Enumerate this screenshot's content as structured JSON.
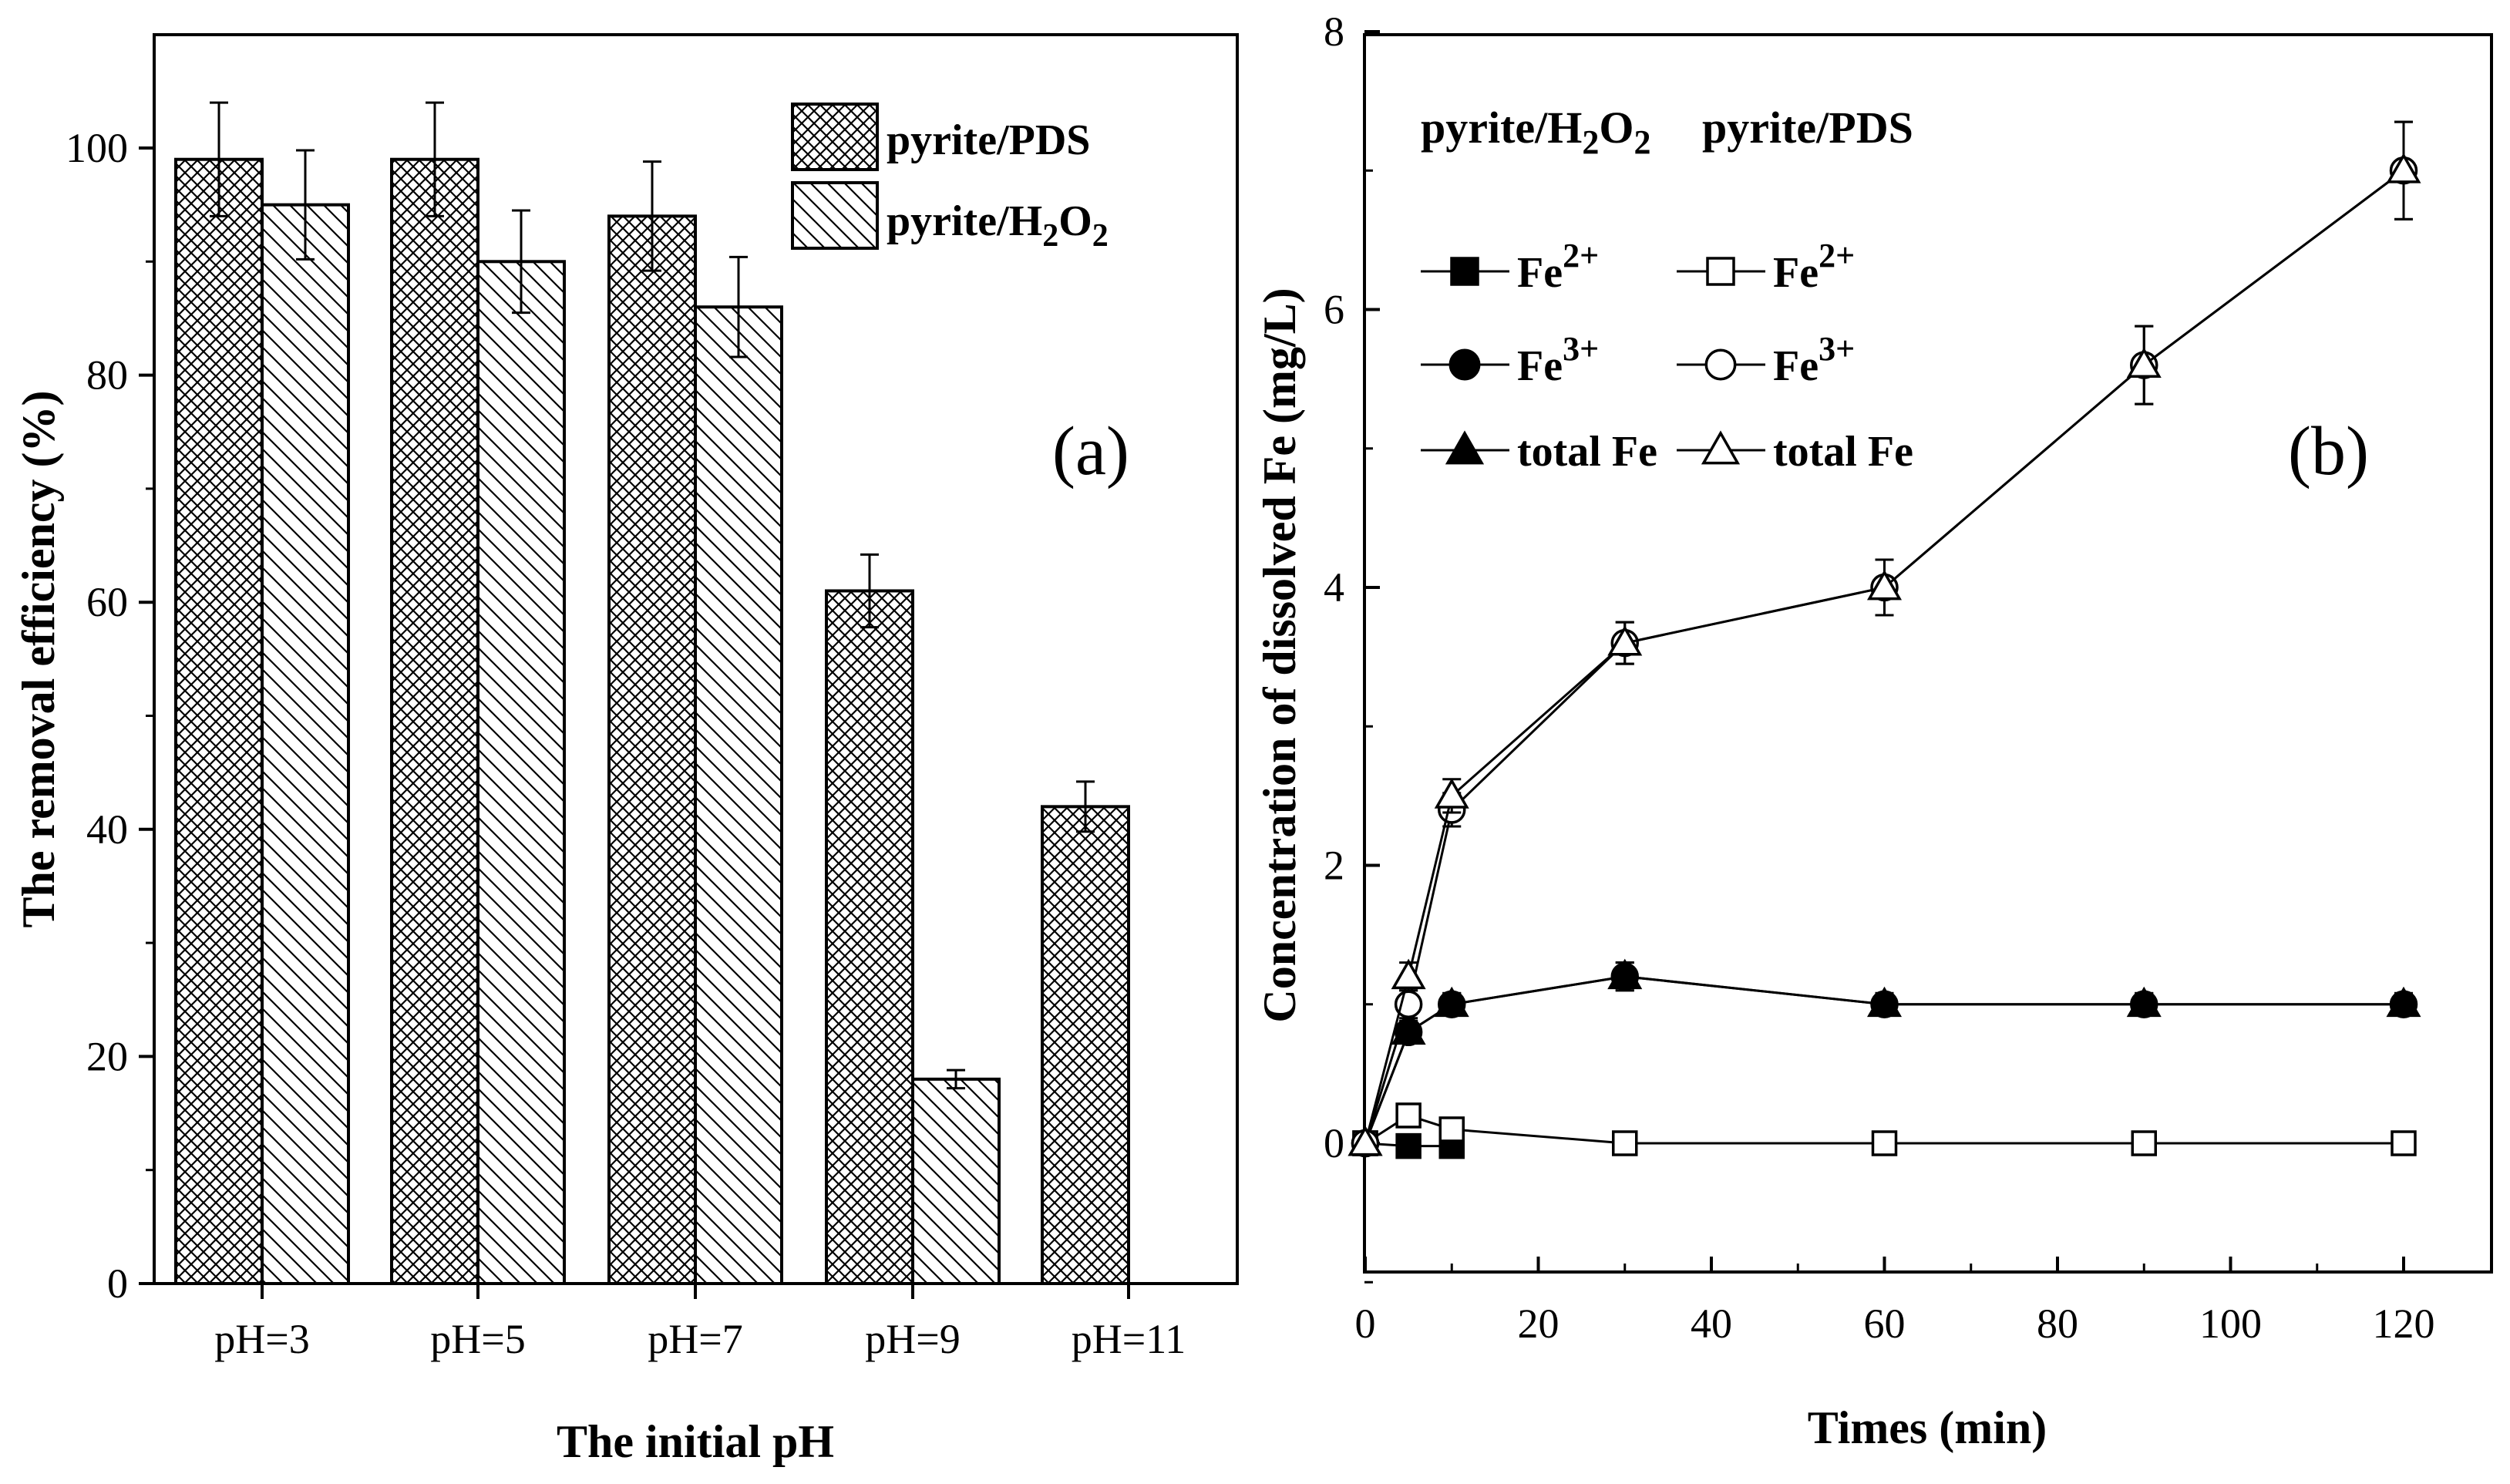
{
  "chart_data": [
    {
      "type": "bar",
      "panel_label": "(a)",
      "categories": [
        "pH=3",
        "pH=5",
        "pH=7",
        "pH=9",
        "pH=11"
      ],
      "series": [
        {
          "name": "pyrite/PDS",
          "sub": "",
          "values": [
            99,
            99,
            94,
            61,
            42
          ],
          "errors": [
            5,
            5,
            4.8,
            3.2,
            2.2
          ],
          "pattern": "crosshatch"
        },
        {
          "name": "pyrite/H",
          "sub": "2",
          "name2": "O",
          "sub2": "2",
          "values": [
            95,
            90,
            86,
            18,
            null
          ],
          "errors": [
            4.8,
            4.5,
            4.4,
            0.8,
            null
          ],
          "pattern": "diagonal"
        }
      ],
      "ylim": [
        0,
        110
      ],
      "yticks": [
        "0",
        "20",
        "40",
        "60",
        "80",
        "100"
      ],
      "ytick_values": [
        0,
        20,
        40,
        60,
        80,
        100
      ],
      "xlabel": "The initial pH",
      "ylabel": "The removal efficiency (%)",
      "legend_position": "top-right"
    },
    {
      "type": "line",
      "panel_label": "(b)",
      "x": [
        0,
        5,
        10,
        30,
        60,
        90,
        120
      ],
      "xlim": [
        0,
        125
      ],
      "ylim": [
        -1.1,
        8
      ],
      "xticks": [
        "0",
        "20",
        "40",
        "60",
        "80",
        "100",
        "120"
      ],
      "xtick_values": [
        0,
        20,
        40,
        60,
        80,
        100,
        120
      ],
      "yticks": [
        "0",
        "2",
        "4",
        "6",
        "8"
      ],
      "ytick_values": [
        0,
        2,
        4,
        6,
        8
      ],
      "xlabel": "Times (min)",
      "ylabel": "Concentration of dissolved Fe (mg/L)",
      "legend_headers": {
        "h2o2": {
          "text": "pyrite/H",
          "sub": "2",
          "text2": "O",
          "sub2": "2"
        },
        "pds": {
          "text": "pyrite/PDS"
        }
      },
      "series": [
        {
          "name": "Fe",
          "sup": "2+",
          "group": "pyrite/H2O2",
          "marker": "square",
          "filled": true,
          "values": [
            0,
            -0.02,
            -0.02,
            null,
            null,
            null,
            null
          ],
          "errors": [
            0,
            0.05,
            0.05,
            null,
            null,
            null,
            null
          ]
        },
        {
          "name": "Fe",
          "sup": "3+",
          "group": "pyrite/H2O2",
          "marker": "circle",
          "filled": true,
          "values": [
            0,
            0.8,
            1.0,
            1.2,
            1.0,
            1.0,
            1.0
          ],
          "errors": [
            0,
            0.08,
            0.08,
            0.1,
            0.08,
            0.08,
            0.08
          ]
        },
        {
          "name": "total Fe",
          "sup": "",
          "group": "pyrite/H2O2",
          "marker": "triangle",
          "filled": true,
          "values": [
            0,
            0.8,
            1.0,
            1.2,
            1.0,
            1.0,
            1.0
          ],
          "errors": [
            0,
            0.08,
            0.08,
            0.1,
            0.08,
            0.08,
            0.08
          ]
        },
        {
          "name": "Fe",
          "sup": "2+",
          "group": "pyrite/PDS",
          "marker": "square",
          "filled": false,
          "values": [
            0,
            0.2,
            0.1,
            0,
            0,
            0,
            0
          ],
          "errors": [
            0,
            0.08,
            0.08,
            0.03,
            0.03,
            0.03,
            0.03
          ]
        },
        {
          "name": "Fe",
          "sup": "3+",
          "group": "pyrite/PDS",
          "marker": "circle",
          "filled": false,
          "values": [
            0,
            1.0,
            2.4,
            3.6,
            4.0,
            5.6,
            7.0
          ],
          "errors": [
            0,
            0.1,
            0.12,
            0.15,
            0.2,
            0.28,
            0.35
          ]
        },
        {
          "name": "total Fe",
          "sup": "",
          "group": "pyrite/PDS",
          "marker": "triangle",
          "filled": false,
          "values": [
            0,
            1.2,
            2.5,
            3.6,
            4.0,
            5.6,
            7.0
          ],
          "errors": [
            0,
            0.1,
            0.12,
            0.15,
            0.2,
            0.28,
            0.35
          ]
        }
      ]
    }
  ],
  "colors": {
    "ink": "#000000",
    "background": "#ffffff"
  }
}
